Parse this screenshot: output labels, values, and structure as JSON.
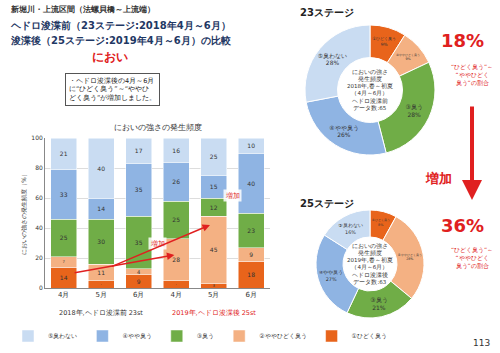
{
  "header": {
    "lines": [
      "新堀川・上流区間（法螺貝橋～上流端）",
      "ヘドロ浚渫前（23ステージ:2018年4月～6月）",
      "浚渫後（25ステージ:2019年4月～6月）の比較"
    ],
    "topic": "におい"
  },
  "callout": {
    "lines": [
      "・ヘドロ浚渫後の4月～6月",
      "に“ひどく臭う”～“ややひ",
      "どく臭う”が増加しました。"
    ]
  },
  "between_pies": "増加",
  "page_number": "113",
  "chart_data": [
    {
      "type": "bar",
      "title": "においの強さの発生頻度",
      "y_label": "においの強さの発生頻度（%）",
      "categories": [
        "4月",
        "5月",
        "6月",
        "4月",
        "5月",
        "6月"
      ],
      "group_labels": [
        "2018年,ヘドロ浚渫前 23st",
        "2019年,ヘドロ浚渫後 25st"
      ],
      "stacked": true,
      "data_labels": true,
      "grid": true,
      "legend": "bottom",
      "ylim": [
        0,
        100
      ],
      "yticks": [
        0,
        20,
        40,
        60,
        80,
        100
      ],
      "series": [
        {
          "name": "①ひどく臭う",
          "color": "#e8641b",
          "values": [
            14,
            5,
            9,
            5,
            3,
            18
          ]
        },
        {
          "name": "②ややひどく臭う",
          "color": "#f4b183",
          "values": [
            7,
            11,
            4,
            28,
            45,
            9
          ]
        },
        {
          "name": "③臭う",
          "color": "#70ad47",
          "values": [
            25,
            30,
            35,
            25,
            12,
            23
          ]
        },
        {
          "name": "④やや臭う",
          "color": "#8fb4e3",
          "values": [
            33,
            14,
            35,
            26,
            15,
            40
          ]
        },
        {
          "name": "⑤臭わない",
          "color": "#c9dcf2",
          "values": [
            21,
            40,
            17,
            16,
            25,
            10
          ]
        }
      ],
      "annotations": [
        "増加",
        "増加"
      ]
    },
    {
      "type": "pie",
      "title": "23ステージ",
      "categories": [
        "①ひどく臭う",
        "②ややひどく臭う",
        "③臭う",
        "④やや臭う",
        "⑤臭わない"
      ],
      "values": [
        9,
        9,
        28,
        26,
        28
      ],
      "value_labels": [
        "9%",
        "9%",
        "28%",
        "26%",
        "28%"
      ],
      "colors": [
        "#e8641b",
        "#f4b183",
        "#70ad47",
        "#8fb4e3",
        "#c9dcf2"
      ],
      "data_labels": true,
      "center_text": [
        "においの強さ",
        "発生頻度",
        "2018年,春～初夏",
        "（4月～6月）",
        "ヘドロ浚渫前",
        "データ数:65"
      ],
      "annotations": [
        {
          "text": "18%"
        },
        {
          "lines": [
            "“ひどく臭う”～",
            "“ややひどく",
            "臭う”の割合"
          ]
        }
      ]
    },
    {
      "type": "pie",
      "title": "25ステージ",
      "categories": [
        "①ひどく臭う",
        "②ややひどく臭う",
        "③臭う",
        "④やや臭う",
        "⑤臭わない"
      ],
      "values": [
        8,
        28,
        21,
        27,
        16
      ],
      "value_labels": [
        "8%",
        "28%",
        "21%",
        "27%",
        "16%"
      ],
      "colors": [
        "#e8641b",
        "#f4b183",
        "#70ad47",
        "#8fb4e3",
        "#c9dcf2"
      ],
      "data_labels": true,
      "center_text": [
        "においの強さ",
        "発生頻度",
        "2019年,春～初夏",
        "（4月～6月）",
        "ヘドロ浚渫後",
        "データ数:63"
      ],
      "annotations": [
        {
          "text": "36%"
        },
        {
          "lines": [
            "“ひどく臭う”～",
            "“ややひどく",
            "臭う”の割合"
          ]
        }
      ]
    }
  ]
}
